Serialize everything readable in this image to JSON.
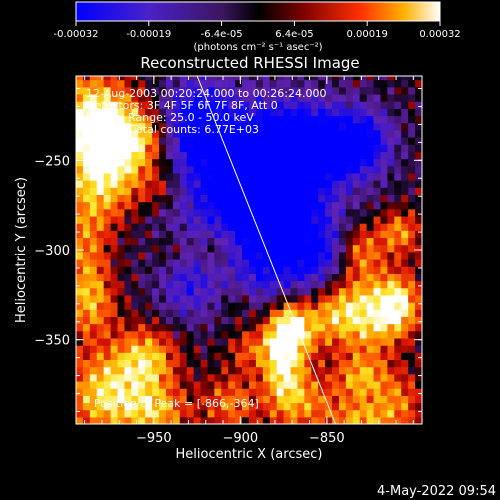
{
  "chart_data": {
    "type": "heatmap",
    "title": "Reconstructed RHESSI Image",
    "xlabel": "Heliocentric X (arcsec)",
    "ylabel": "Heliocentric Y (arcsec)",
    "xlim": [
      -995,
      -795
    ],
    "ylim": [
      -397,
      -203
    ],
    "xticks": [
      -950,
      -900,
      -850
    ],
    "yticks": [
      -250,
      -300,
      -350
    ],
    "colorbar": {
      "range": [
        -0.00032,
        0.00032
      ],
      "ticks": [
        "-0.00032",
        "-0.00019",
        "-6.4e-05",
        "6.4e-05",
        "0.00019",
        "0.00032"
      ],
      "unit_label": "(photons cm⁻² s⁻¹ asec⁻²)"
    },
    "colors": {
      "background": "#000000",
      "cmap": [
        "#0000ff",
        "#5a1fb8",
        "#501a80",
        "#000000",
        "#8b0000",
        "#ff2200",
        "#ff8000",
        "#ffd000",
        "#ffffff"
      ]
    },
    "annotations": [
      "12-Aug-2003 00:20:24.000 to 00:26:24.000",
      "Detectors: 3F 4F 5F 6F 7F 8F, Att 0",
      "Energy Range: 25.0 - 50.0 keV",
      "Clean    Total counts: 6.77E+03"
    ],
    "peak_label": "Position of Peak = [-866,-364]",
    "peak": {
      "x": -866,
      "y": -364
    },
    "limb_line": [
      {
        "x": -925,
        "y": -203
      },
      {
        "x": -845,
        "y": -397
      }
    ],
    "footer": "4-May-2022 09:54"
  }
}
